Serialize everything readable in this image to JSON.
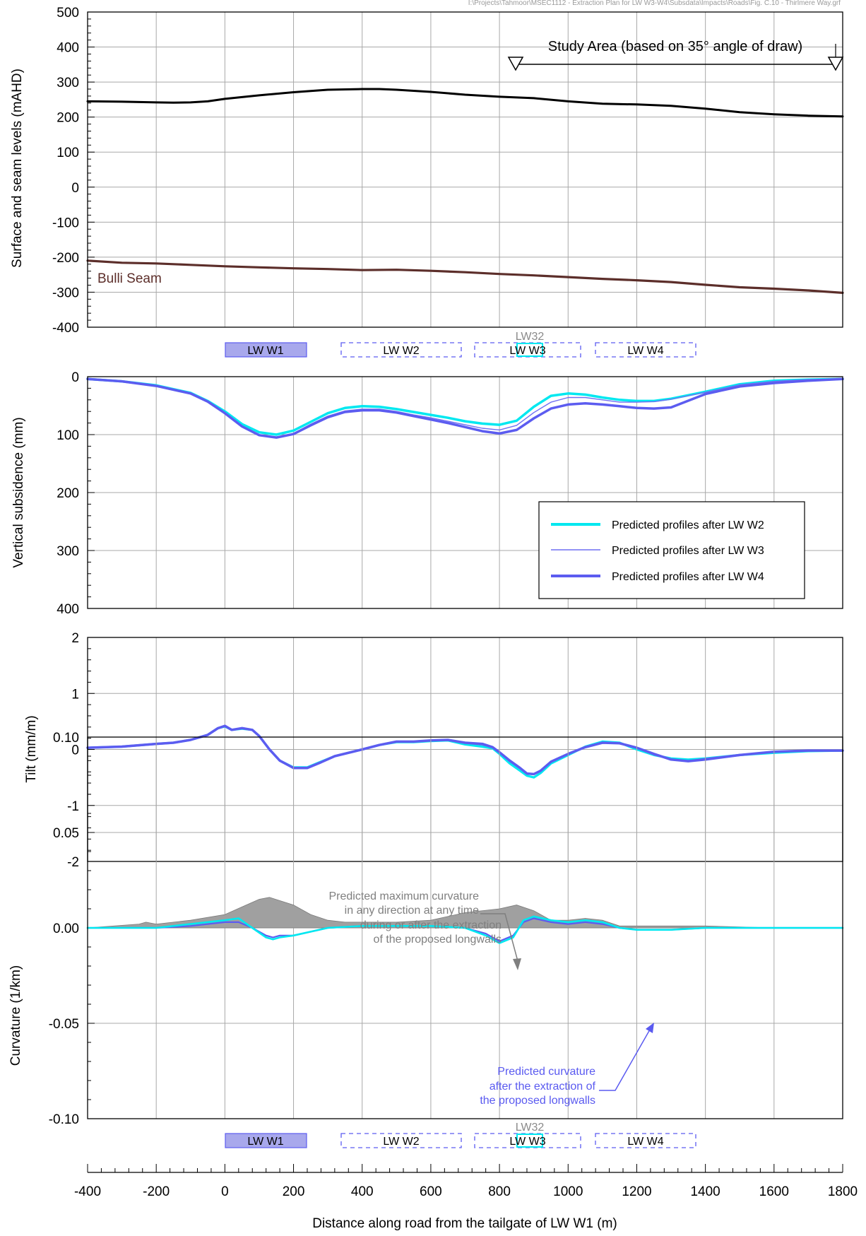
{
  "file_path": "I:\\Projects\\Tahmoor\\MSEC1112 - Extraction Plan for LW W3-W4\\Subsdata\\Impacts\\Roads\\Fig. C.10 - Thirlmere Way.grf",
  "x_axis": {
    "label": "Distance along road from the tailgate of LW W1 (m)",
    "min": -400,
    "max": 1800,
    "ticks": [
      "-400",
      "-200",
      "0",
      "200",
      "400",
      "600",
      "800",
      "1000",
      "1200",
      "1400",
      "1600",
      "1800"
    ]
  },
  "longwall_labels": {
    "w1": "LW W1",
    "w2": "LW W2",
    "w3": "LW W3",
    "w4": "LW W4",
    "lw32": "LW32"
  },
  "chart_data": [
    {
      "type": "line",
      "title": "",
      "ylabel": "Surface and seam levels (mAHD)",
      "ylim": [
        -400,
        500
      ],
      "yticks": [
        "500",
        "400",
        "300",
        "200",
        "100",
        "0",
        "-100",
        "-200",
        "-300",
        "-400"
      ],
      "grid": true,
      "annotation": "Study Area (based on 35° angle of draw)",
      "study_area": [
        850,
        1790
      ],
      "series": [
        {
          "name": "",
          "color": "#000000",
          "x": [
            -400,
            -300,
            -200,
            -150,
            -100,
            -50,
            0,
            100,
            200,
            300,
            400,
            450,
            500,
            600,
            700,
            800,
            900,
            1000,
            1100,
            1200,
            1300,
            1400,
            1500,
            1600,
            1700,
            1800
          ],
          "y": [
            245,
            244,
            242,
            241,
            242,
            245,
            252,
            262,
            271,
            278,
            280,
            280,
            278,
            272,
            264,
            258,
            254,
            245,
            238,
            236,
            232,
            224,
            214,
            208,
            204,
            202
          ]
        },
        {
          "name": "Bulli Seam",
          "color": "#5c2e2a",
          "x": [
            -400,
            -300,
            -200,
            -100,
            0,
            100,
            200,
            300,
            400,
            500,
            600,
            700,
            800,
            900,
            1000,
            1100,
            1200,
            1300,
            1400,
            1500,
            1600,
            1700,
            1800
          ],
          "y": [
            -210,
            -216,
            -218,
            -222,
            -226,
            -229,
            -232,
            -234,
            -237,
            -236,
            -239,
            -243,
            -248,
            -252,
            -257,
            -262,
            -266,
            -271,
            -279,
            -286,
            -290,
            -295,
            -302
          ]
        }
      ]
    },
    {
      "type": "line",
      "title": "",
      "ylabel": "Vertical subsidence (mm)",
      "ylim": [
        0,
        400
      ],
      "y_inverted": true,
      "yticks": [
        "0",
        "100",
        "200",
        "300",
        "400"
      ],
      "grid": true,
      "legend_position": "lower-right",
      "series": [
        {
          "name": "Predicted profiles after LW W2",
          "color": "#00e8f0",
          "x": [
            -400,
            -300,
            -200,
            -100,
            -50,
            0,
            50,
            100,
            150,
            200,
            250,
            300,
            350,
            400,
            450,
            500,
            550,
            600,
            650,
            700,
            750,
            800,
            850,
            900,
            950,
            1000,
            1050,
            1100,
            1150,
            1200,
            1250,
            1300,
            1400,
            1500,
            1600,
            1700,
            1800
          ],
          "y": [
            4,
            8,
            15,
            28,
            42,
            60,
            82,
            96,
            100,
            93,
            78,
            63,
            54,
            51,
            52,
            56,
            61,
            66,
            71,
            77,
            81,
            83,
            76,
            52,
            33,
            29,
            31,
            36,
            40,
            42,
            42,
            38,
            26,
            13,
            7,
            5,
            4
          ]
        },
        {
          "name": "Predicted profiles after LW W3",
          "color": "#6f6ff2",
          "x": [
            -400,
            -300,
            -200,
            -100,
            -50,
            0,
            50,
            100,
            150,
            200,
            250,
            300,
            350,
            400,
            450,
            500,
            550,
            600,
            650,
            700,
            750,
            800,
            850,
            900,
            950,
            1000,
            1050,
            1100,
            1150,
            1200,
            1250,
            1300,
            1400,
            1500,
            1600,
            1700,
            1800
          ],
          "y": [
            4,
            8,
            15,
            28,
            42,
            62,
            85,
            100,
            104,
            98,
            82,
            68,
            59,
            56,
            56,
            60,
            66,
            71,
            77,
            83,
            89,
            92,
            84,
            62,
            44,
            36,
            36,
            40,
            44,
            44,
            43,
            39,
            27,
            14,
            8,
            5,
            4
          ]
        },
        {
          "name": "Predicted profiles after LW W4",
          "color": "#5c5cf0",
          "x": [
            -400,
            -300,
            -200,
            -100,
            -50,
            0,
            50,
            100,
            150,
            200,
            250,
            300,
            350,
            400,
            450,
            500,
            550,
            600,
            650,
            700,
            750,
            800,
            850,
            900,
            950,
            1000,
            1050,
            1100,
            1150,
            1200,
            1250,
            1300,
            1400,
            1500,
            1600,
            1700,
            1800
          ],
          "y": [
            4,
            8,
            16,
            29,
            43,
            63,
            86,
            101,
            105,
            99,
            84,
            70,
            61,
            58,
            58,
            62,
            68,
            74,
            80,
            87,
            94,
            98,
            92,
            72,
            55,
            48,
            46,
            48,
            51,
            54,
            55,
            53,
            30,
            17,
            11,
            7,
            4
          ]
        }
      ]
    },
    {
      "type": "line",
      "title": "",
      "ylabel": "Tilt (mm/m)",
      "ylim": [
        -2,
        2
      ],
      "yticks": [
        "2",
        "1",
        "0",
        "-1",
        "-2"
      ],
      "grid": true,
      "series": [
        {
          "name": "Predicted profiles after LW W2",
          "color": "#00e8f0",
          "x": [
            -400,
            -300,
            -200,
            -150,
            -100,
            -50,
            -20,
            0,
            20,
            50,
            80,
            100,
            130,
            160,
            200,
            240,
            280,
            320,
            400,
            450,
            500,
            550,
            600,
            650,
            700,
            750,
            780,
            800,
            830,
            860,
            880,
            900,
            920,
            950,
            1000,
            1050,
            1100,
            1150,
            1200,
            1250,
            1300,
            1350,
            1400,
            1500,
            1600,
            1700,
            1800
          ],
          "y": [
            0.03,
            0.05,
            0.1,
            0.12,
            0.17,
            0.26,
            0.38,
            0.41,
            0.35,
            0.37,
            0.35,
            0.24,
            0.0,
            -0.2,
            -0.32,
            -0.32,
            -0.22,
            -0.12,
            0.0,
            0.08,
            0.13,
            0.13,
            0.15,
            0.16,
            0.09,
            0.05,
            0.02,
            -0.08,
            -0.25,
            -0.38,
            -0.47,
            -0.5,
            -0.42,
            -0.25,
            -0.1,
            0.05,
            0.14,
            0.12,
            0.0,
            -0.1,
            -0.16,
            -0.18,
            -0.16,
            -0.1,
            -0.06,
            -0.03,
            -0.02
          ]
        },
        {
          "name": "Predicted profiles after LW W3",
          "color": "#6f6ff2",
          "x": [
            -400,
            -300,
            -200,
            -150,
            -100,
            -50,
            -20,
            0,
            20,
            50,
            80,
            100,
            130,
            160,
            200,
            240,
            280,
            320,
            400,
            450,
            500,
            550,
            600,
            650,
            700,
            750,
            780,
            800,
            830,
            860,
            880,
            900,
            920,
            950,
            1000,
            1050,
            1100,
            1150,
            1200,
            1250,
            1300,
            1350,
            1400,
            1500,
            1600,
            1700,
            1800
          ],
          "y": [
            0.03,
            0.05,
            0.1,
            0.12,
            0.17,
            0.26,
            0.38,
            0.42,
            0.35,
            0.38,
            0.35,
            0.24,
            0.0,
            -0.2,
            -0.33,
            -0.33,
            -0.23,
            -0.12,
            0.0,
            0.08,
            0.14,
            0.14,
            0.16,
            0.17,
            0.11,
            0.08,
            0.03,
            -0.06,
            -0.22,
            -0.34,
            -0.44,
            -0.45,
            -0.38,
            -0.23,
            -0.09,
            0.04,
            0.12,
            0.11,
            0.02,
            -0.1,
            -0.18,
            -0.2,
            -0.16,
            -0.09,
            -0.04,
            -0.02,
            -0.02
          ]
        },
        {
          "name": "Predicted profiles after LW W4",
          "color": "#5c5cf0",
          "x": [
            -400,
            -300,
            -200,
            -150,
            -100,
            -50,
            -20,
            0,
            20,
            50,
            80,
            100,
            130,
            160,
            200,
            240,
            280,
            320,
            400,
            450,
            500,
            550,
            600,
            650,
            700,
            750,
            780,
            800,
            830,
            860,
            880,
            900,
            920,
            950,
            1000,
            1050,
            1100,
            1150,
            1200,
            1250,
            1300,
            1350,
            1400,
            1500,
            1600,
            1700,
            1800
          ],
          "y": [
            0.03,
            0.05,
            0.1,
            0.12,
            0.17,
            0.26,
            0.38,
            0.42,
            0.35,
            0.38,
            0.35,
            0.24,
            0.0,
            -0.2,
            -0.33,
            -0.33,
            -0.23,
            -0.12,
            0.0,
            0.08,
            0.14,
            0.14,
            0.16,
            0.17,
            0.12,
            0.1,
            0.04,
            -0.05,
            -0.2,
            -0.33,
            -0.43,
            -0.44,
            -0.38,
            -0.22,
            -0.08,
            0.04,
            0.12,
            0.11,
            0.03,
            -0.08,
            -0.18,
            -0.21,
            -0.18,
            -0.1,
            -0.04,
            -0.02,
            -0.02
          ]
        }
      ]
    },
    {
      "type": "area",
      "title": "",
      "ylabel": "Curvature (1/km)",
      "ylim": [
        -0.1,
        0.1
      ],
      "yticks": [
        "0.10",
        "0.05",
        "0.00",
        "-0.05",
        "-0.10"
      ],
      "grid": true,
      "annotations": [
        {
          "lines": [
            "Predicted maximum curvature",
            "in any direction at any time",
            "during or after the extraction",
            "of the proposed longwalls"
          ],
          "color": "#7f7f7f"
        },
        {
          "lines": [
            "Predicted curvature",
            "after the extraction of",
            "the proposed longwalls"
          ],
          "color": "#5a5af0"
        }
      ],
      "series": [
        {
          "name": "",
          "color": "#a0a0a0",
          "fill": true,
          "x": [
            -400,
            -250,
            -230,
            -200,
            -100,
            0,
            50,
            100,
            130,
            200,
            250,
            300,
            350,
            400,
            500,
            600,
            700,
            800,
            850,
            900,
            950,
            1000,
            1050,
            1100,
            1150,
            1200,
            1400,
            1600,
            1800
          ],
          "y": [
            0.0,
            0.002,
            0.003,
            0.002,
            0.004,
            0.007,
            0.011,
            0.015,
            0.016,
            0.012,
            0.007,
            0.004,
            0.003,
            0.003,
            0.003,
            0.004,
            0.008,
            0.01,
            0.012,
            0.009,
            0.004,
            0.004,
            0.005,
            0.004,
            0.001,
            0.001,
            0.001,
            0.0,
            0.0
          ]
        },
        {
          "name": "",
          "color": "#5c5cf0",
          "x": [
            -400,
            -200,
            -100,
            0,
            40,
            80,
            120,
            140,
            160,
            200,
            250,
            300,
            400,
            600,
            700,
            760,
            800,
            840,
            870,
            900,
            950,
            1000,
            1050,
            1100,
            1150,
            1200,
            1300,
            1400,
            1600,
            1800
          ],
          "y": [
            0.0,
            0.0,
            0.001,
            0.003,
            0.003,
            0.0,
            -0.004,
            -0.005,
            -0.004,
            -0.004,
            -0.002,
            0.0,
            0.001,
            0.001,
            0.0,
            -0.003,
            -0.007,
            -0.004,
            0.003,
            0.005,
            0.003,
            0.002,
            0.003,
            0.002,
            0.0,
            -0.001,
            -0.001,
            0.0,
            0.0,
            0.0
          ]
        },
        {
          "name": "",
          "color": "#00e8f0",
          "x": [
            -400,
            -200,
            -100,
            0,
            40,
            80,
            120,
            140,
            160,
            200,
            250,
            300,
            400,
            600,
            700,
            760,
            800,
            840,
            870,
            900,
            950,
            1000,
            1050,
            1100,
            1150,
            1200,
            1300,
            1400,
            1600,
            1800
          ],
          "y": [
            0.0,
            0.0,
            0.002,
            0.004,
            0.005,
            0.0,
            -0.005,
            -0.006,
            -0.005,
            -0.004,
            -0.002,
            0.0,
            0.001,
            0.001,
            0.0,
            -0.004,
            -0.008,
            -0.005,
            0.004,
            0.006,
            0.004,
            0.003,
            0.004,
            0.003,
            0.0,
            -0.001,
            -0.001,
            0.0,
            0.0,
            0.0
          ]
        }
      ]
    }
  ],
  "colors": {
    "cyan": "#00e8f0",
    "blue": "#5c5cf0",
    "blue_light": "#6f6ff2",
    "seam": "#5c2e2a",
    "grey_fill": "#a0a0a0",
    "grid": "#a8a8a8"
  }
}
